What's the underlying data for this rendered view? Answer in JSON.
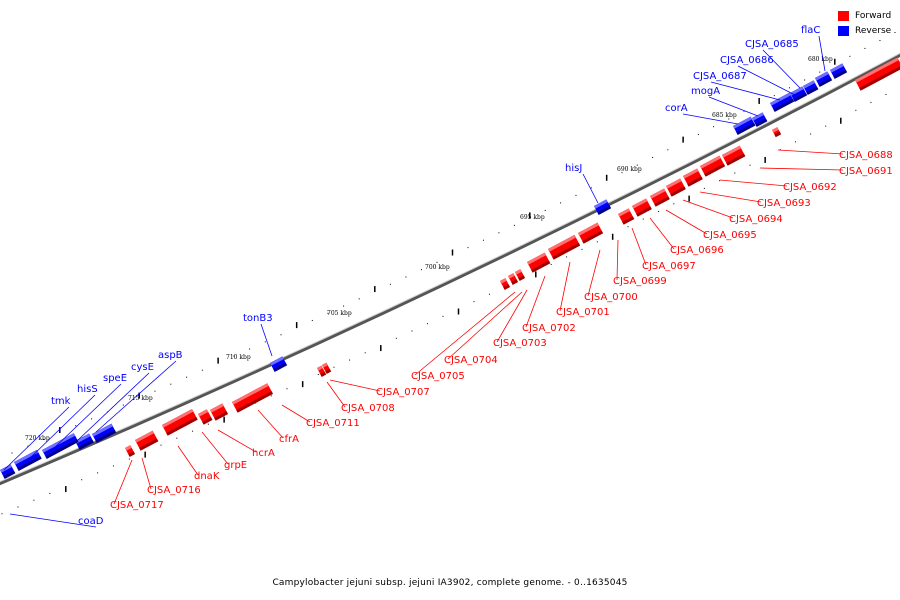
{
  "legend": {
    "forward_label": "Forward",
    "reverse_label": "Reverse",
    "forward_color": "#ff0000",
    "reverse_color": "#0000ff"
  },
  "caption": "Campylobacter jejuni subsp. jejuni IA3902, complete genome. - 0..1635045",
  "tick_labels": [
    "680 kbp",
    "685 kbp",
    "690 kbp",
    "695 kbp",
    "700 kbp",
    "705 kbp",
    "710 kbp",
    "715 kbp",
    "720 kbp"
  ],
  "reverse_genes": [
    "flaC",
    "CJSA_0685",
    "CJSA_0686",
    "CJSA_0687",
    "mogA",
    "corA",
    "hisJ",
    "tonB3",
    "aspB",
    "cysE",
    "speE",
    "hisS",
    "tmk",
    "coaD"
  ],
  "forward_genes": [
    "CJSA_0688",
    "CJSA_0691",
    "CJSA_0692",
    "CJSA_0693",
    "CJSA_0694",
    "CJSA_0695",
    "CJSA_0696",
    "CJSA_0697",
    "CJSA_0699",
    "CJSA_0700",
    "CJSA_0701",
    "CJSA_0702",
    "CJSA_0703",
    "CJSA_0704",
    "CJSA_0705",
    "CJSA_0707",
    "CJSA_0708",
    "CJSA_0711",
    "cfrA",
    "hcrA",
    "grpE",
    "dnaK",
    "CJSA_0716",
    "CJSA_0717"
  ]
}
